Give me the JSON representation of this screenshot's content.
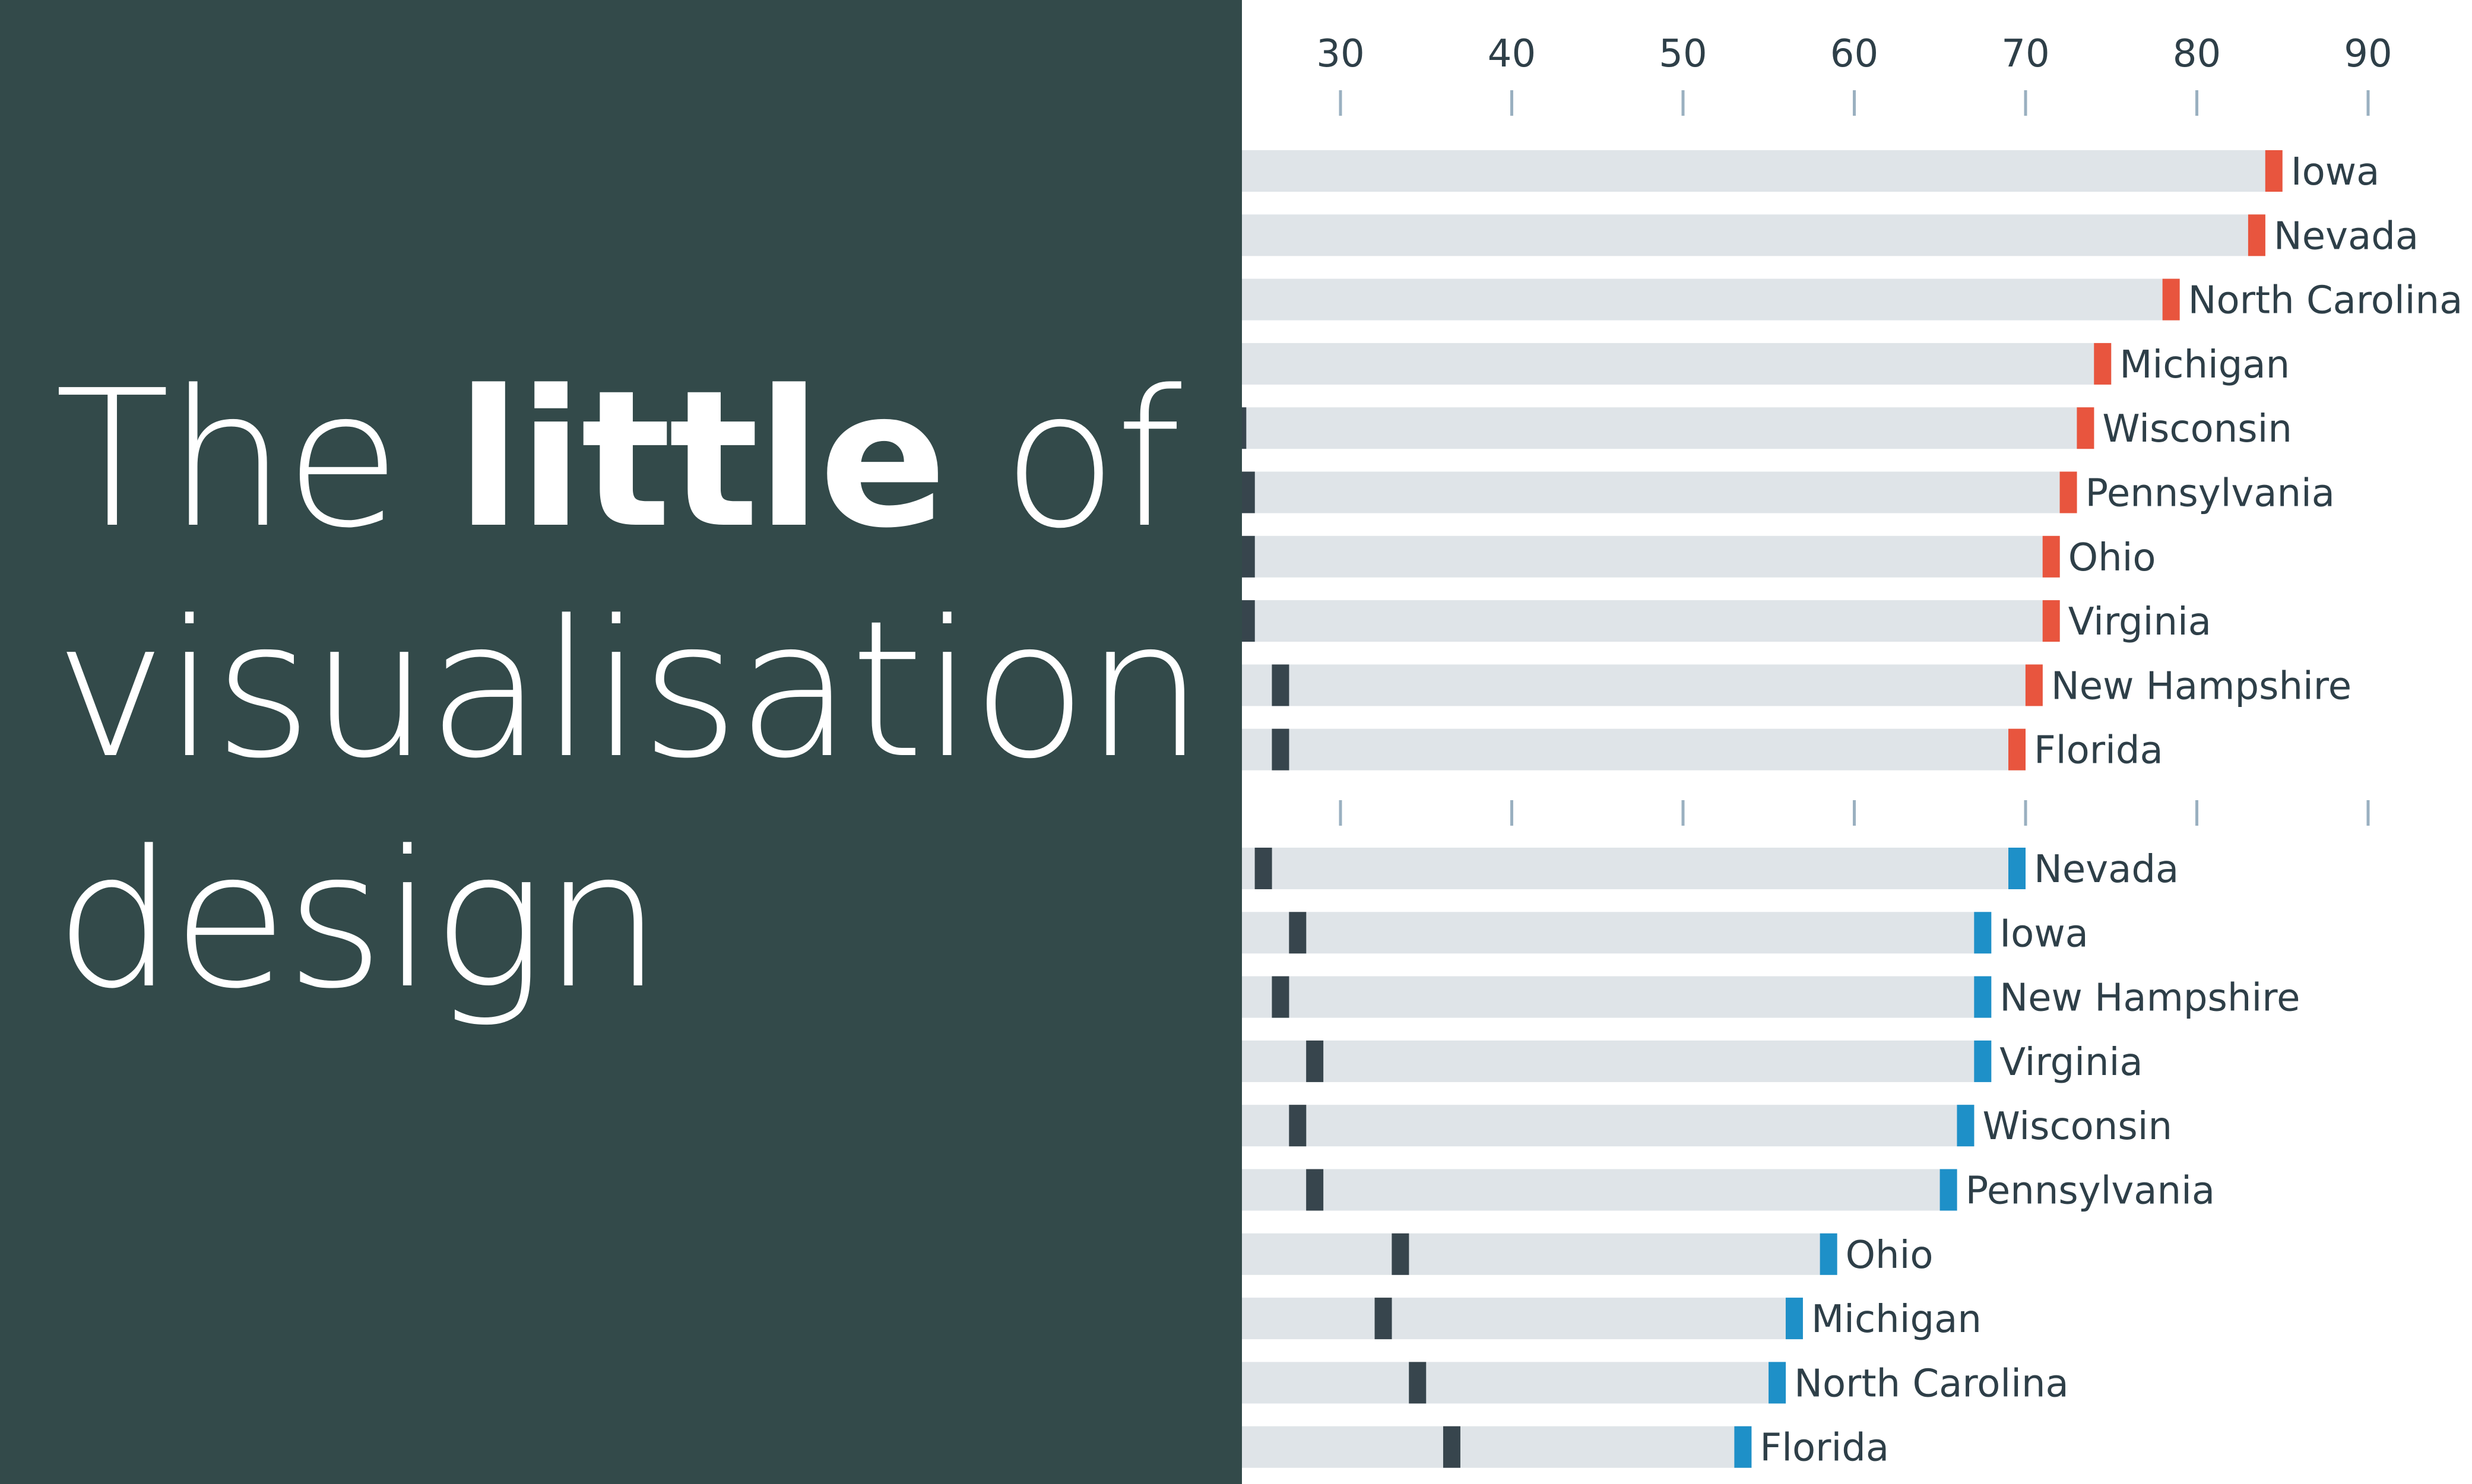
{
  "title": {
    "part1": "The ",
    "bold": "little",
    "part2": " of",
    "line2": "visualisation",
    "line3": "design"
  },
  "colors": {
    "panel_bg": "#334a4a",
    "bar_bg": "#dfe4e8",
    "dark_marker": "#37454d",
    "red_marker": "#e8553e",
    "blue_marker": "#1e90c8",
    "tick": "#9ab0c0"
  },
  "chart_data": [
    {
      "type": "bar",
      "orientation": "horizontal",
      "xlim": [
        24.3,
        95
      ],
      "xticks": [
        30,
        40,
        50,
        60,
        70,
        80,
        90
      ],
      "tick_labels_shown": true,
      "grid": false,
      "categories": [
        "Iowa",
        "Nevada",
        "North Carolina",
        "Michigan",
        "Wisconsin",
        "Pennsylvania",
        "Ohio",
        "Virginia",
        "New Hampshire",
        "Florida"
      ],
      "series": [
        {
          "color": "#37454d",
          "values": [
            null,
            null,
            null,
            null,
            24.5,
            25,
            25,
            25,
            27,
            27
          ]
        },
        {
          "color": "#e8553e",
          "values": [
            85,
            84,
            79,
            75,
            74,
            73,
            72,
            72,
            71,
            70
          ]
        }
      ]
    },
    {
      "type": "bar",
      "orientation": "horizontal",
      "xlim": [
        24.3,
        95
      ],
      "xticks": [
        30,
        40,
        50,
        60,
        70,
        80,
        90
      ],
      "tick_labels_shown": false,
      "grid": false,
      "categories": [
        "Nevada",
        "Iowa",
        "New Hampshire",
        "Virginia",
        "Wisconsin",
        "Pennsylvania",
        "Ohio",
        "Michigan",
        "North Carolina",
        "Florida"
      ],
      "series": [
        {
          "color": "#37454d",
          "values": [
            26,
            28,
            27,
            29,
            28,
            29,
            34,
            33,
            35,
            37
          ]
        },
        {
          "color": "#1e90c8",
          "values": [
            70,
            68,
            68,
            68,
            67,
            66,
            59,
            57,
            56,
            54
          ]
        }
      ]
    }
  ]
}
